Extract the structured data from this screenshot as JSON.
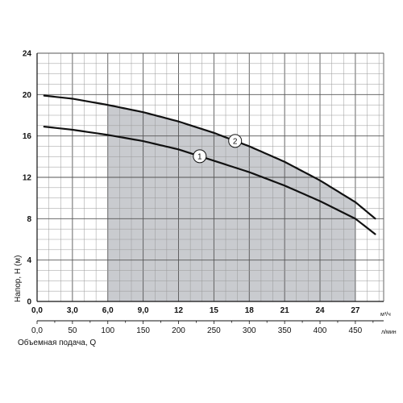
{
  "chart_data": {
    "type": "line",
    "ylabel": "Напор, H (м)",
    "ylim": [
      0,
      24
    ],
    "yticks": [
      "0",
      "4",
      "8",
      "12",
      "16",
      "20",
      "24"
    ],
    "xlim_m3h": [
      0,
      29.4
    ],
    "xticks_m3h": [
      "0,0",
      "3,0",
      "6,0",
      "9,0",
      "12",
      "15",
      "18",
      "21",
      "24",
      "27"
    ],
    "x_unit_m3h": "м³/ч",
    "xticks_lmin": [
      "0,0",
      "50",
      "100",
      "150",
      "200",
      "250",
      "300",
      "350",
      "400",
      "450"
    ],
    "x_unit_lmin": "л/мин",
    "xlabel": "Объемная подача, Q",
    "grid": true,
    "operating_range_lmin": [
      100,
      450
    ],
    "series": [
      {
        "name": "1",
        "x_lmin": [
          10,
          50,
          100,
          150,
          200,
          250,
          300,
          350,
          400,
          450,
          480
        ],
        "y": [
          16.9,
          16.6,
          16.1,
          15.5,
          14.7,
          13.6,
          12.5,
          11.2,
          9.7,
          8.0,
          6.4
        ]
      },
      {
        "name": "2",
        "x_lmin": [
          10,
          50,
          100,
          150,
          200,
          250,
          300,
          350,
          400,
          450,
          480
        ],
        "y": [
          19.9,
          19.6,
          19.0,
          18.3,
          17.4,
          16.3,
          15.0,
          13.5,
          11.7,
          9.6,
          7.9
        ]
      }
    ]
  }
}
